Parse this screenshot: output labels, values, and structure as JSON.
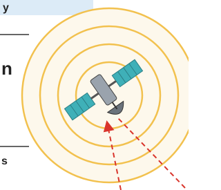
{
  "fragments": {
    "top": "y",
    "middle": "n",
    "bottom": "s"
  }
}
